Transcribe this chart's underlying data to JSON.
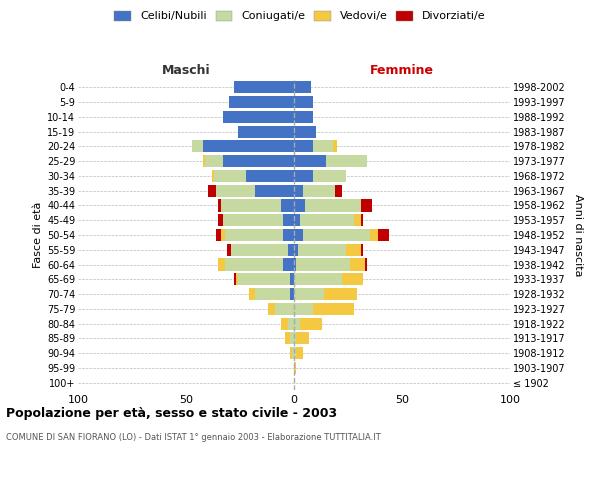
{
  "age_groups": [
    "100+",
    "95-99",
    "90-94",
    "85-89",
    "80-84",
    "75-79",
    "70-74",
    "65-69",
    "60-64",
    "55-59",
    "50-54",
    "45-49",
    "40-44",
    "35-39",
    "30-34",
    "25-29",
    "20-24",
    "15-19",
    "10-14",
    "5-9",
    "0-4"
  ],
  "birth_years": [
    "≤ 1902",
    "1903-1907",
    "1908-1912",
    "1913-1917",
    "1918-1922",
    "1923-1927",
    "1928-1932",
    "1933-1937",
    "1938-1942",
    "1943-1947",
    "1948-1952",
    "1953-1957",
    "1958-1962",
    "1963-1967",
    "1968-1972",
    "1973-1977",
    "1978-1982",
    "1983-1987",
    "1988-1992",
    "1993-1997",
    "1998-2002"
  ],
  "maschi": {
    "celibi": [
      0,
      0,
      0,
      0,
      0,
      0,
      2,
      2,
      5,
      3,
      5,
      5,
      6,
      18,
      22,
      33,
      42,
      26,
      33,
      30,
      28
    ],
    "coniugati": [
      0,
      0,
      1,
      2,
      3,
      9,
      16,
      24,
      27,
      26,
      27,
      28,
      28,
      18,
      15,
      8,
      5,
      0,
      0,
      0,
      0
    ],
    "vedovi": [
      0,
      0,
      1,
      2,
      3,
      3,
      3,
      1,
      3,
      0,
      2,
      0,
      0,
      0,
      1,
      1,
      0,
      0,
      0,
      0,
      0
    ],
    "divorziati": [
      0,
      0,
      0,
      0,
      0,
      0,
      0,
      1,
      0,
      2,
      2,
      2,
      1,
      4,
      0,
      0,
      0,
      0,
      0,
      0,
      0
    ]
  },
  "femmine": {
    "nubili": [
      0,
      0,
      0,
      0,
      0,
      0,
      0,
      0,
      1,
      2,
      4,
      3,
      5,
      4,
      9,
      15,
      9,
      10,
      9,
      9,
      8
    ],
    "coniugate": [
      0,
      0,
      1,
      1,
      3,
      9,
      14,
      22,
      25,
      22,
      31,
      25,
      26,
      15,
      15,
      19,
      9,
      0,
      0,
      0,
      0
    ],
    "vedove": [
      0,
      1,
      3,
      6,
      10,
      19,
      15,
      10,
      7,
      7,
      4,
      3,
      0,
      0,
      0,
      0,
      2,
      0,
      0,
      0,
      0
    ],
    "divorziate": [
      0,
      0,
      0,
      0,
      0,
      0,
      0,
      0,
      1,
      1,
      5,
      1,
      5,
      3,
      0,
      0,
      0,
      0,
      0,
      0,
      0
    ]
  },
  "colors": {
    "celibi_nubili": "#4472c4",
    "coniugati": "#c5d9a0",
    "vedovi": "#f5c842",
    "divorziati": "#c00000"
  },
  "title": "Popolazione per età, sesso e stato civile - 2003",
  "subtitle": "COMUNE DI SAN FIORANO (LO) - Dati ISTAT 1° gennaio 2003 - Elaborazione TUTTITALIA.IT",
  "xlabel_left": "Maschi",
  "xlabel_right": "Femmine",
  "ylabel_left": "Fasce di età",
  "ylabel_right": "Anni di nascita",
  "xlim": 100,
  "bg_color": "#ffffff",
  "grid_color": "#bbbbbb",
  "legend_labels": [
    "Celibi/Nubili",
    "Coniugati/e",
    "Vedovi/e",
    "Divorziati/e"
  ]
}
